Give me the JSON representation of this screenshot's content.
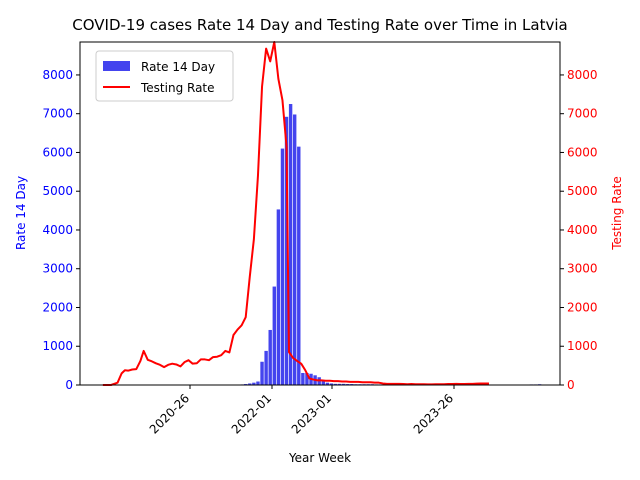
{
  "chart_data": {
    "type": "bar+line",
    "title": "COVID-19 cases Rate 14 Day and Testing Rate over Time in Latvia",
    "xlabel": "Year Week",
    "ylabel_left": "Rate 14 Day",
    "ylabel_right": "Testing Rate",
    "x_ticks": [
      "2020-26",
      "2022-01",
      "2023-01",
      "2023-26"
    ],
    "ylim_left": [
      0,
      8850
    ],
    "ylim_right": [
      0,
      8850
    ],
    "yticks_left": [
      0,
      1000,
      2000,
      3000,
      4000,
      5000,
      6000,
      7000,
      8000
    ],
    "yticks_right": [
      0,
      1000,
      2000,
      3000,
      4000,
      5000,
      6000,
      7000,
      8000
    ],
    "legend_placement": "upper-left",
    "colors": {
      "bars": "#4444ee",
      "line": "#ff0000",
      "left_axis": "#0000ff",
      "right_axis": "#ff0000"
    },
    "series": [
      {
        "name": "Rate 14 Day",
        "kind": "bar",
        "points": [
          {
            "x": 25,
            "y": 5
          },
          {
            "x": 31,
            "y": 12
          },
          {
            "x": 32,
            "y": 10
          },
          {
            "x": 171,
            "y": 15
          },
          {
            "x": 175,
            "y": 25
          },
          {
            "x": 180,
            "y": 40
          },
          {
            "x": 185,
            "y": 60
          },
          {
            "x": 190,
            "y": 90
          },
          {
            "x": 195,
            "y": 600
          },
          {
            "x": 200,
            "y": 880
          },
          {
            "x": 205,
            "y": 1420
          },
          {
            "x": 210,
            "y": 2540
          },
          {
            "x": 215,
            "y": 4530
          },
          {
            "x": 220,
            "y": 6100
          },
          {
            "x": 225,
            "y": 6920
          },
          {
            "x": 230,
            "y": 7250
          },
          {
            "x": 235,
            "y": 6980
          },
          {
            "x": 240,
            "y": 6150
          },
          {
            "x": 245,
            "y": 310
          },
          {
            "x": 250,
            "y": 310
          },
          {
            "x": 255,
            "y": 290
          },
          {
            "x": 260,
            "y": 250
          },
          {
            "x": 265,
            "y": 200
          },
          {
            "x": 270,
            "y": 110
          },
          {
            "x": 275,
            "y": 60
          },
          {
            "x": 280,
            "y": 40
          },
          {
            "x": 285,
            "y": 30
          },
          {
            "x": 290,
            "y": 30
          },
          {
            "x": 295,
            "y": 30
          },
          {
            "x": 300,
            "y": 25
          },
          {
            "x": 305,
            "y": 25
          },
          {
            "x": 310,
            "y": 20
          },
          {
            "x": 315,
            "y": 20
          },
          {
            "x": 320,
            "y": 20
          },
          {
            "x": 325,
            "y": 20
          },
          {
            "x": 330,
            "y": 20
          },
          {
            "x": 335,
            "y": 15
          },
          {
            "x": 340,
            "y": 15
          },
          {
            "x": 345,
            "y": 15
          },
          {
            "x": 350,
            "y": 15
          },
          {
            "x": 355,
            "y": 10
          },
          {
            "x": 360,
            "y": 10
          },
          {
            "x": 365,
            "y": 10
          },
          {
            "x": 370,
            "y": 10
          },
          {
            "x": 375,
            "y": 10
          },
          {
            "x": 380,
            "y": 10
          },
          {
            "x": 385,
            "y": 10
          },
          {
            "x": 390,
            "y": 10
          },
          {
            "x": 395,
            "y": 10
          },
          {
            "x": 400,
            "y": 10
          },
          {
            "x": 405,
            "y": 10
          },
          {
            "x": 410,
            "y": 10
          },
          {
            "x": 415,
            "y": 10
          },
          {
            "x": 420,
            "y": 10
          },
          {
            "x": 425,
            "y": 10
          },
          {
            "x": 430,
            "y": 10
          },
          {
            "x": 435,
            "y": 10
          },
          {
            "x": 440,
            "y": 10
          },
          {
            "x": 445,
            "y": 10
          },
          {
            "x": 450,
            "y": 10
          },
          {
            "x": 455,
            "y": 10
          },
          {
            "x": 460,
            "y": 10
          },
          {
            "x": 465,
            "y": 10
          },
          {
            "x": 470,
            "y": 10
          },
          {
            "x": 475,
            "y": 10
          },
          {
            "x": 480,
            "y": 10
          },
          {
            "x": 485,
            "y": 10
          },
          {
            "x": 490,
            "y": 10
          },
          {
            "x": 495,
            "y": 10
          },
          {
            "x": 500,
            "y": 10
          },
          {
            "x": 505,
            "y": 10
          },
          {
            "x": 510,
            "y": 10
          },
          {
            "x": 515,
            "y": 10
          },
          {
            "x": 520,
            "y": 10
          },
          {
            "x": 525,
            "y": 15
          },
          {
            "x": 530,
            "y": 15
          },
          {
            "x": 535,
            "y": 20
          }
        ]
      },
      {
        "name": "Testing Rate",
        "kind": "line",
        "points": [
          {
            "x": 0,
            "y": 0
          },
          {
            "x": 10,
            "y": 0
          },
          {
            "x": 18,
            "y": 60
          },
          {
            "x": 23,
            "y": 300
          },
          {
            "x": 27,
            "y": 380
          },
          {
            "x": 31,
            "y": 370
          },
          {
            "x": 36,
            "y": 400
          },
          {
            "x": 41,
            "y": 410
          },
          {
            "x": 46,
            "y": 620
          },
          {
            "x": 50,
            "y": 880
          },
          {
            "x": 55,
            "y": 650
          },
          {
            "x": 60,
            "y": 610
          },
          {
            "x": 65,
            "y": 560
          },
          {
            "x": 70,
            "y": 520
          },
          {
            "x": 75,
            "y": 460
          },
          {
            "x": 80,
            "y": 520
          },
          {
            "x": 85,
            "y": 550
          },
          {
            "x": 90,
            "y": 530
          },
          {
            "x": 95,
            "y": 480
          },
          {
            "x": 100,
            "y": 590
          },
          {
            "x": 105,
            "y": 640
          },
          {
            "x": 110,
            "y": 550
          },
          {
            "x": 115,
            "y": 560
          },
          {
            "x": 120,
            "y": 660
          },
          {
            "x": 125,
            "y": 660
          },
          {
            "x": 130,
            "y": 640
          },
          {
            "x": 135,
            "y": 720
          },
          {
            "x": 140,
            "y": 730
          },
          {
            "x": 145,
            "y": 770
          },
          {
            "x": 150,
            "y": 880
          },
          {
            "x": 155,
            "y": 840
          },
          {
            "x": 160,
            "y": 1290
          },
          {
            "x": 165,
            "y": 1430
          },
          {
            "x": 170,
            "y": 1540
          },
          {
            "x": 175,
            "y": 1750
          },
          {
            "x": 180,
            "y": 2800
          },
          {
            "x": 185,
            "y": 3760
          },
          {
            "x": 190,
            "y": 5400
          },
          {
            "x": 195,
            "y": 7700
          },
          {
            "x": 200,
            "y": 8680
          },
          {
            "x": 205,
            "y": 8350
          },
          {
            "x": 210,
            "y": 8850
          },
          {
            "x": 215,
            "y": 7900
          },
          {
            "x": 220,
            "y": 7350
          },
          {
            "x": 225,
            "y": 6150
          },
          {
            "x": 228,
            "y": 850
          },
          {
            "x": 233,
            "y": 700
          },
          {
            "x": 238,
            "y": 620
          },
          {
            "x": 243,
            "y": 550
          },
          {
            "x": 248,
            "y": 380
          },
          {
            "x": 253,
            "y": 170
          },
          {
            "x": 258,
            "y": 140
          },
          {
            "x": 263,
            "y": 120
          },
          {
            "x": 268,
            "y": 120
          },
          {
            "x": 273,
            "y": 110
          },
          {
            "x": 278,
            "y": 110
          },
          {
            "x": 283,
            "y": 100
          },
          {
            "x": 288,
            "y": 100
          },
          {
            "x": 293,
            "y": 90
          },
          {
            "x": 298,
            "y": 90
          },
          {
            "x": 303,
            "y": 80
          },
          {
            "x": 308,
            "y": 80
          },
          {
            "x": 313,
            "y": 80
          },
          {
            "x": 318,
            "y": 70
          },
          {
            "x": 323,
            "y": 70
          },
          {
            "x": 328,
            "y": 70
          },
          {
            "x": 333,
            "y": 60
          },
          {
            "x": 338,
            "y": 60
          },
          {
            "x": 343,
            "y": 40
          },
          {
            "x": 348,
            "y": 30
          },
          {
            "x": 353,
            "y": 30
          },
          {
            "x": 358,
            "y": 30
          },
          {
            "x": 363,
            "y": 30
          },
          {
            "x": 368,
            "y": 25
          },
          {
            "x": 373,
            "y": 20
          },
          {
            "x": 378,
            "y": 25
          },
          {
            "x": 383,
            "y": 20
          },
          {
            "x": 388,
            "y": 20
          },
          {
            "x": 393,
            "y": 20
          },
          {
            "x": 398,
            "y": 15
          },
          {
            "x": 403,
            "y": 15
          },
          {
            "x": 408,
            "y": 20
          },
          {
            "x": 413,
            "y": 20
          },
          {
            "x": 418,
            "y": 20
          },
          {
            "x": 423,
            "y": 25
          },
          {
            "x": 428,
            "y": 25
          },
          {
            "x": 433,
            "y": 30
          },
          {
            "x": 438,
            "y": 25
          },
          {
            "x": 443,
            "y": 25
          },
          {
            "x": 448,
            "y": 30
          },
          {
            "x": 453,
            "y": 30
          },
          {
            "x": 458,
            "y": 35
          },
          {
            "x": 463,
            "y": 40
          },
          {
            "x": 468,
            "y": 40
          },
          {
            "x": 473,
            "y": 40
          }
        ]
      }
    ]
  }
}
